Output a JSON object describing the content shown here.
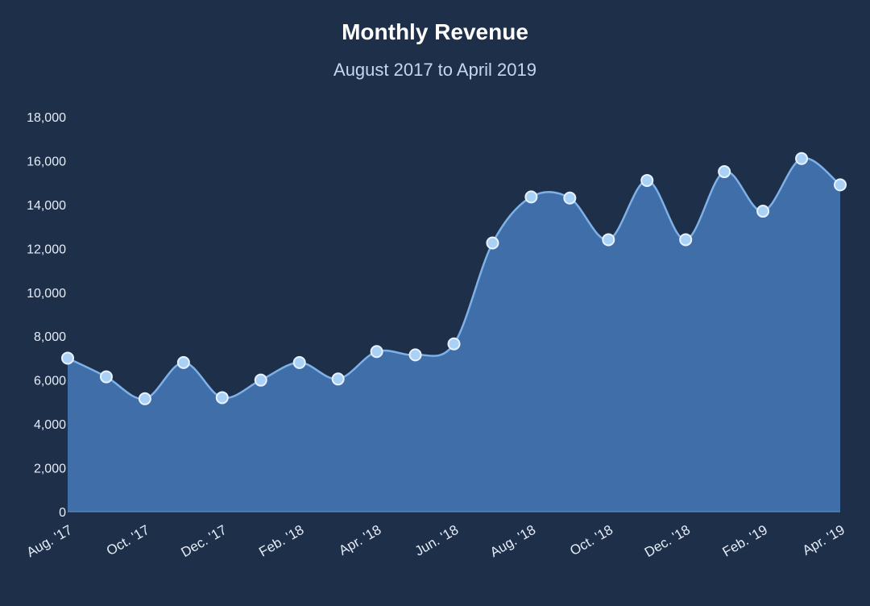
{
  "chart_data": {
    "type": "area",
    "title": "Monthly Revenue",
    "subtitle": "August 2017 to April 2019",
    "xlabel": "",
    "ylabel": "",
    "ylim": [
      0,
      18000
    ],
    "yticks": [
      0,
      2000,
      4000,
      6000,
      8000,
      10000,
      12000,
      14000,
      16000,
      18000
    ],
    "ytick_labels": [
      "0",
      "2,000",
      "4,000",
      "6,000",
      "8,000",
      "10,000",
      "12,000",
      "14,000",
      "16,000",
      "18,000"
    ],
    "x_tick_labels": [
      "Aug. '17",
      "Oct. '17",
      "Dec. '17",
      "Feb. '18",
      "Apr. '18",
      "Jun. '18",
      "Aug. '18",
      "Oct. '18",
      "Dec. '18",
      "Feb. '19",
      "Apr. '19"
    ],
    "categories": [
      "Aug. '17",
      "Sep. '17",
      "Oct. '17",
      "Nov. '17",
      "Dec. '17",
      "Jan. '18",
      "Feb. '18",
      "Mar. '18",
      "Apr. '18",
      "May '18",
      "Jun. '18",
      "Jul. '18",
      "Aug. '18",
      "Sep. '18",
      "Oct. '18",
      "Nov. '18",
      "Dec. '18",
      "Jan. '19",
      "Feb. '19",
      "Mar. '19",
      "Apr. '19"
    ],
    "values": [
      7000,
      6150,
      5150,
      6800,
      5200,
      6000,
      6800,
      6050,
      7300,
      7150,
      7650,
      12250,
      14350,
      14300,
      12400,
      15100,
      12400,
      15500,
      13700,
      16100,
      14900
    ],
    "grid": false,
    "legend": "none",
    "colors": {
      "background": "#1e2f4a",
      "fill": "#3f6ea8",
      "line": "#7fb0e6",
      "marker": "#a9d0f5",
      "marker_stroke": "#e8f2ff"
    }
  }
}
